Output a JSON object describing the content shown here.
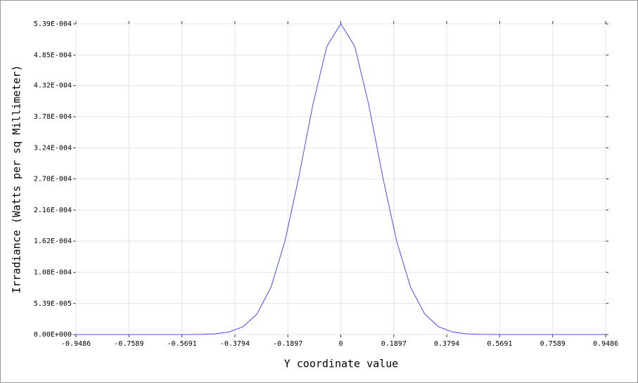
{
  "chart_data": {
    "type": "line",
    "xlabel": "Y coordinate value",
    "ylabel": "Irradiance (Watts per sq Millimeter)",
    "x": [
      -0.9486,
      -0.8,
      -0.7,
      -0.6,
      -0.55,
      -0.5,
      -0.45,
      -0.4,
      -0.35,
      -0.3,
      -0.25,
      -0.2,
      -0.15,
      -0.1,
      -0.05,
      0,
      0.05,
      0.1,
      0.15,
      0.2,
      0.25,
      0.3,
      0.35,
      0.4,
      0.45,
      0.5,
      0.55,
      0.6,
      0.7,
      0.8,
      0.9486
    ],
    "values": [
      0,
      0,
      0,
      0,
      6e-08,
      2.9e-07,
      1.2e-06,
      4.4e-06,
      1.35e-05,
      3.58e-05,
      8.2e-05,
      0.000162,
      0.000274,
      0.000399,
      0.0005,
      0.000539,
      0.0005,
      0.000399,
      0.000274,
      0.000162,
      8.2e-05,
      3.58e-05,
      1.35e-05,
      4.4e-06,
      1.2e-06,
      2.9e-07,
      6e-08,
      0,
      0,
      0,
      0
    ],
    "color": "#4a4aff",
    "xlim": [
      -0.9486,
      0.9486
    ],
    "xticks": [
      -0.9486,
      -0.7589,
      -0.5691,
      -0.3794,
      -0.1897,
      0,
      0.1897,
      0.3794,
      0.5691,
      0.7589,
      0.9486
    ],
    "ylim": [
      0,
      0.000539
    ],
    "yticks": [
      {
        "value": 0,
        "label": "0.00E+000"
      },
      {
        "value": 5.39e-05,
        "label": "5.39E-005"
      },
      {
        "value": 0.000108,
        "label": "1.08E-004"
      },
      {
        "value": 0.000162,
        "label": "1.62E-004"
      },
      {
        "value": 0.000216,
        "label": "2.16E-004"
      },
      {
        "value": 0.00027,
        "label": "2.70E-004"
      },
      {
        "value": 0.000324,
        "label": "3.24E-004"
      },
      {
        "value": 0.000378,
        "label": "3.78E-004"
      },
      {
        "value": 0.000432,
        "label": "4.32E-004"
      },
      {
        "value": 0.000485,
        "label": "4.85E-004"
      },
      {
        "value": 0.000539,
        "label": "5.39E-004"
      }
    ],
    "grid": true
  }
}
